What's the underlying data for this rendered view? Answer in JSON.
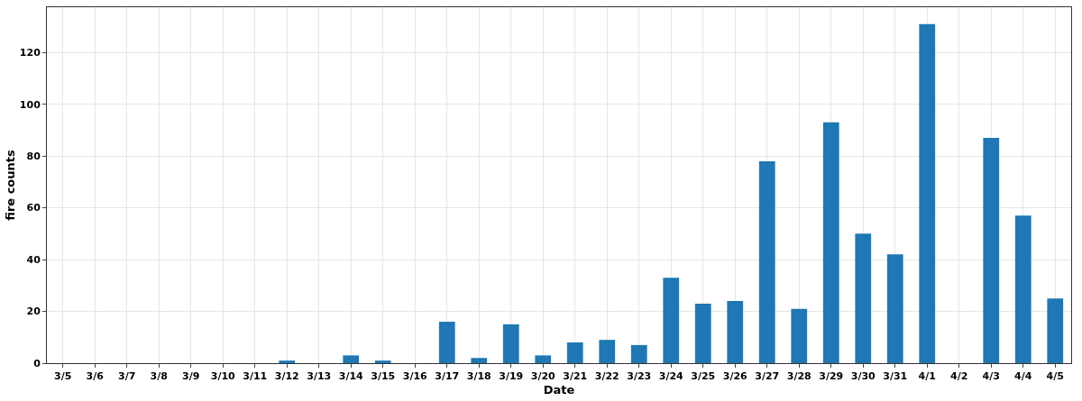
{
  "chart_data": {
    "type": "bar",
    "xlabel": "Date",
    "ylabel": "fire counts",
    "categories": [
      "3/5",
      "3/6",
      "3/7",
      "3/8",
      "3/9",
      "3/10",
      "3/11",
      "3/12",
      "3/13",
      "3/14",
      "3/15",
      "3/16",
      "3/17",
      "3/18",
      "3/19",
      "3/20",
      "3/21",
      "3/22",
      "3/23",
      "3/24",
      "3/25",
      "3/26",
      "3/27",
      "3/28",
      "3/29",
      "3/30",
      "3/31",
      "4/1",
      "4/2",
      "4/3",
      "4/4",
      "4/5"
    ],
    "values": [
      0,
      0,
      0,
      0,
      0,
      0,
      0,
      1,
      0,
      3,
      1,
      0,
      16,
      2,
      15,
      3,
      8,
      9,
      7,
      33,
      23,
      24,
      78,
      21,
      93,
      50,
      42,
      131,
      0,
      87,
      57,
      25
    ],
    "color": "#1f77b4",
    "ylim": [
      0,
      137.5
    ],
    "yticks": [
      0,
      20,
      40,
      60,
      80,
      100,
      120
    ],
    "grid": true
  }
}
